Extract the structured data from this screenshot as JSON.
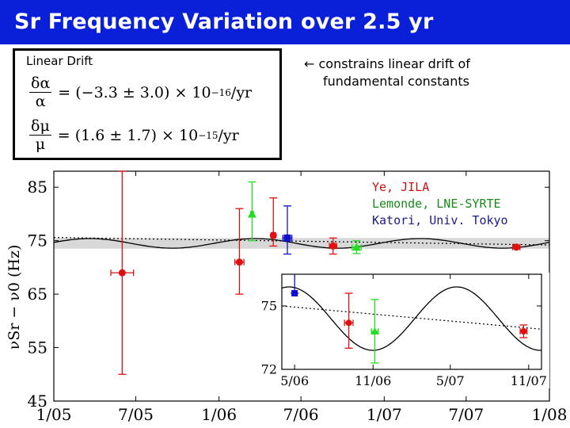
{
  "slide": {
    "title": "Sr Frequency Variation over 2.5 yr",
    "drift_box": {
      "label": "Linear Drift",
      "eq1": {
        "num": "δα",
        "den": "α",
        "rhs": "= (−3.3 ± 3.0) × 10",
        "exp": "−16",
        "unit": "/yr"
      },
      "eq2": {
        "num": "δμ",
        "den": "μ",
        "rhs": "= (1.6 ± 1.7) × 10",
        "exp": "−15",
        "unit": "/yr"
      }
    },
    "note": {
      "arrow": "←",
      "line1": "constrains linear drift of",
      "line2": "fundamental constants"
    }
  },
  "legend": [
    {
      "label": "Ye, JILA",
      "color": "#cc1111"
    },
    {
      "label": "Lemonde, LNE-SYRTE",
      "color": "#1a8a1a"
    },
    {
      "label": "Katori, Univ. Tokyo",
      "color": "#1a1a8a"
    }
  ],
  "chart_data": [
    {
      "type": "scatter",
      "ylabel": "νSr − ν0 (Hz)",
      "xlim": [
        "2005-01",
        "2008-01"
      ],
      "ylim": [
        45,
        88
      ],
      "x_ticks": [
        "1/05",
        "7/05",
        "1/06",
        "7/06",
        "1/07",
        "7/07",
        "1/08"
      ],
      "y_ticks": [
        45,
        55,
        65,
        75,
        85
      ],
      "band": [
        73.5,
        75.5
      ],
      "series": [
        {
          "name": "Ye, JILA",
          "marker": "circle",
          "color": "#e01010",
          "points": [
            {
              "x": "2005-06-01",
              "y": 69,
              "yerr": [
                19,
                19
              ],
              "xerr_days": 25
            },
            {
              "x": "2006-02-15",
              "y": 71,
              "yerr": [
                10,
                6
              ],
              "xerr_days": 10
            },
            {
              "x": "2006-05-01",
              "y": 76,
              "yerr": [
                7,
                2
              ],
              "xerr_days": 5
            },
            {
              "x": "2006-09-10",
              "y": 74,
              "yerr": [
                1.5,
                1.5
              ],
              "xerr_days": 8
            },
            {
              "x": "2007-10-20",
              "y": 73.8,
              "yerr": [
                0.3,
                0.3
              ],
              "xerr_days": 8
            }
          ]
        },
        {
          "name": "Lemonde, LNE-SYRTE",
          "marker": "triangle",
          "color": "#22dd22",
          "points": [
            {
              "x": "2006-03-15",
              "y": 80,
              "yerr": [
                6,
                5
              ],
              "xerr_days": 3
            },
            {
              "x": "2006-11-01",
              "y": 73.8,
              "yerr": [
                1.2,
                1.2
              ],
              "xerr_days": 10
            }
          ]
        },
        {
          "name": "Katori, Univ. Tokyo",
          "marker": "square",
          "color": "#1010cc",
          "points": [
            {
              "x": "2006-06-01",
              "y": 75.5,
              "yerr": [
                6,
                3
              ],
              "xerr_days": 10
            }
          ]
        }
      ]
    },
    {
      "type": "scatter",
      "inset": true,
      "xlim": [
        "2006-04-01",
        "2007-12-01"
      ],
      "ylim": [
        72,
        76.5
      ],
      "x_ticks": [
        "5/06",
        "11/06",
        "5/07",
        "11/07"
      ],
      "y_ticks": [
        72,
        75
      ],
      "series": [
        {
          "name": "Katori, Univ. Tokyo",
          "marker": "square",
          "color": "#1010cc",
          "points": [
            {
              "x": "2006-05-01",
              "y": 75.6,
              "yerr": [
                5,
                0
              ],
              "xerr_days": 6
            }
          ]
        },
        {
          "name": "Ye, JILA",
          "marker": "circle",
          "color": "#e01010",
          "points": [
            {
              "x": "2006-09-05",
              "y": 74.2,
              "yerr": [
                1.4,
                1.2
              ],
              "xerr_days": 10
            },
            {
              "x": "2007-10-20",
              "y": 73.8,
              "yerr": [
                0.3,
                0.3
              ],
              "xerr_days": 8
            }
          ]
        },
        {
          "name": "Lemonde, LNE-SYRTE",
          "marker": "triangle",
          "color": "#22dd22",
          "points": [
            {
              "x": "2006-11-05",
              "y": 73.8,
              "yerr": [
                1.5,
                1.5
              ],
              "xerr_days": 8
            }
          ]
        }
      ]
    }
  ]
}
